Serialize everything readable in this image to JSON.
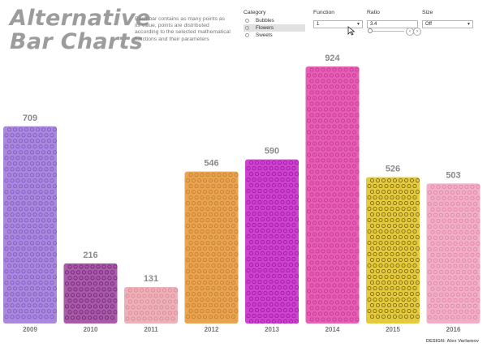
{
  "header": {
    "title_line1": "Alternative",
    "title_line2": "Bar Charts",
    "description": "Each bar contains as many points as its value, points are distributed according to the selected mathematical functions and their parameters"
  },
  "controls": {
    "category": {
      "label": "Category",
      "options": [
        "Bubbles",
        "Flowers",
        "Sweets"
      ],
      "selected": "Flowers"
    },
    "function": {
      "label": "Function",
      "value": "1"
    },
    "ratio": {
      "label": "Ratio",
      "value": "3.4",
      "slider_fraction": 0.0
    },
    "size": {
      "label": "Size",
      "value": "Off"
    }
  },
  "credit": "DESIGN: Alex Varlamov",
  "chart_data": {
    "type": "bar",
    "categories": [
      "2009",
      "2010",
      "2011",
      "2012",
      "2013",
      "2014",
      "2015",
      "2016"
    ],
    "values": [
      709,
      216,
      131,
      546,
      590,
      924,
      526,
      503
    ],
    "title": "",
    "xlabel": "",
    "ylabel": "",
    "ylim": [
      0,
      1000
    ],
    "grid": false,
    "legend": "none",
    "colors": [
      "#9b74d6",
      "#9a3d9a",
      "#eaa3ad",
      "#e39435",
      "#c322c6",
      "#e044a8",
      "#e0c21a",
      "#efa1bd"
    ],
    "dot_colors": [
      "#7a52c4",
      "#6e1f72",
      "#d9838f",
      "#c9781f",
      "#a010a6",
      "#c52b8f",
      "#6b5a10",
      "#e07fa2"
    ]
  }
}
